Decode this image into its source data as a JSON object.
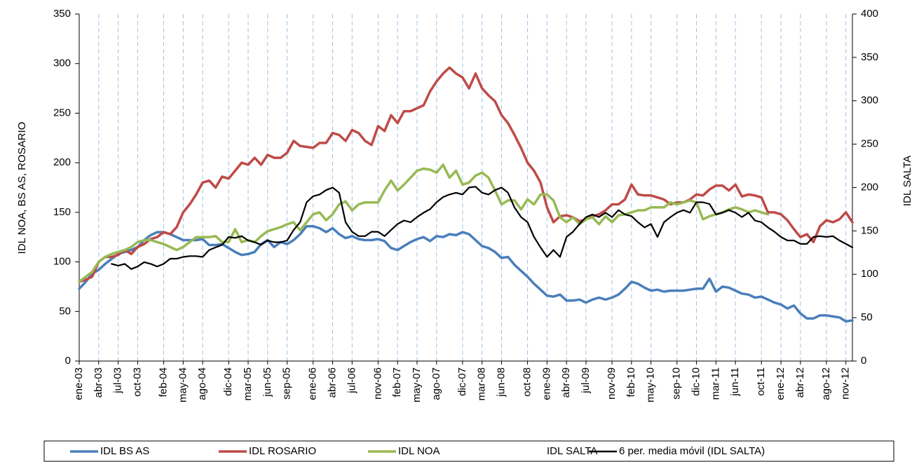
{
  "chart_data": {
    "type": "line",
    "y_label": "IDL NOA, BS AS, ROSARIO",
    "y2_label": "IDL SALTA",
    "categories": [
      "ene-03",
      null,
      null,
      "abr-03",
      null,
      null,
      "jul-03",
      null,
      null,
      "oct-03",
      null,
      null,
      null,
      "feb-04",
      null,
      null,
      "may-04",
      null,
      null,
      "ago-04",
      null,
      null,
      null,
      "dic-04",
      null,
      null,
      "mar-05",
      null,
      null,
      "jun-05",
      null,
      null,
      "sep-05",
      null,
      null,
      null,
      "ene-06",
      null,
      null,
      "abr-06",
      null,
      null,
      "jul-06",
      null,
      null,
      null,
      "nov-06",
      null,
      null,
      "feb-07",
      null,
      null,
      "may-07",
      null,
      null,
      "ago-07",
      null,
      null,
      null,
      "dic-07",
      null,
      null,
      "mar-08",
      null,
      null,
      "jun-08",
      null,
      null,
      null,
      "oct-08",
      null,
      null,
      "ene-09",
      null,
      null,
      "abr-09",
      null,
      null,
      "jul-09",
      null,
      null,
      null,
      "nov-09",
      null,
      null,
      "feb-10",
      null,
      null,
      "may-10",
      null,
      null,
      null,
      "sep-10",
      null,
      null,
      "dic-10",
      null,
      null,
      "mar-11",
      null,
      null,
      "jun-11",
      null,
      null,
      null,
      "oct-11",
      null,
      null,
      "ene-12",
      null,
      null,
      "abr-12",
      null,
      null,
      null,
      "ago-12",
      null,
      null,
      "nov-12",
      null
    ],
    "series": [
      {
        "name": "IDL BS AS",
        "color": "#4a7ebb",
        "axis": "y",
        "values": [
          73,
          80,
          88,
          92,
          98,
          103,
          108,
          110,
          112,
          115,
          122,
          127,
          130,
          130,
          128,
          125,
          122,
          122,
          122,
          123,
          117,
          117,
          118,
          114,
          110,
          107,
          108,
          110,
          118,
          122,
          115,
          120,
          118,
          122,
          128,
          136,
          136,
          134,
          130,
          134,
          128,
          124,
          126,
          123,
          122,
          122,
          123,
          121,
          114,
          112,
          116,
          120,
          123,
          125,
          121,
          126,
          125,
          128,
          127,
          130,
          128,
          122,
          116,
          114,
          110,
          104,
          105,
          97,
          91,
          85,
          78,
          72,
          66,
          65,
          67,
          61,
          61,
          62,
          59,
          62,
          64,
          62,
          64,
          67,
          73,
          80,
          78,
          74,
          71,
          72,
          70,
          71,
          71,
          71,
          72,
          73,
          73,
          83,
          70,
          75,
          74,
          71,
          68,
          67,
          64,
          65,
          62,
          59,
          57,
          53,
          56,
          48,
          43,
          43,
          46,
          46,
          45,
          44,
          40,
          41
        ]
      },
      {
        "name": "IDL ROSARIO",
        "color": "#be4b48",
        "axis": "y",
        "values": [
          80,
          82,
          85,
          100,
          105,
          105,
          107,
          112,
          108,
          115,
          118,
          123,
          125,
          130,
          128,
          135,
          150,
          158,
          168,
          180,
          182,
          175,
          186,
          184,
          192,
          200,
          198,
          205,
          198,
          208,
          205,
          205,
          210,
          222,
          217,
          216,
          215,
          220,
          220,
          230,
          228,
          222,
          233,
          230,
          222,
          218,
          237,
          232,
          248,
          240,
          252,
          252,
          255,
          258,
          272,
          282,
          290,
          296,
          290,
          286,
          275,
          290,
          275,
          268,
          262,
          248,
          240,
          228,
          215,
          200,
          192,
          180,
          155,
          140,
          146,
          147,
          145,
          141,
          143,
          146,
          148,
          152,
          158,
          158,
          163,
          178,
          168,
          167,
          167,
          165,
          163,
          158,
          160,
          160,
          163,
          168,
          167,
          173,
          177,
          177,
          172,
          178,
          166,
          168,
          167,
          165,
          150,
          150,
          148,
          142,
          133,
          125,
          128,
          120,
          136,
          142,
          140,
          143,
          150,
          140
        ]
      },
      {
        "name": "IDL NOA",
        "color": "#98b954",
        "axis": "y",
        "values": [
          80,
          85,
          90,
          100,
          105,
          108,
          110,
          112,
          115,
          120,
          122,
          122,
          120,
          118,
          115,
          112,
          115,
          120,
          125,
          125,
          125,
          126,
          120,
          120,
          133,
          120,
          122,
          120,
          126,
          131,
          133,
          135,
          138,
          140,
          132,
          140,
          148,
          150,
          142,
          148,
          158,
          161,
          152,
          158,
          160,
          160,
          160,
          172,
          182,
          172,
          178,
          185,
          192,
          194,
          193,
          190,
          198,
          185,
          192,
          178,
          180,
          187,
          190,
          185,
          172,
          158,
          162,
          162,
          153,
          163,
          158,
          168,
          168,
          162,
          145,
          140,
          145,
          138,
          143,
          145,
          138,
          146,
          140,
          147,
          148,
          150,
          152,
          152,
          155,
          155,
          155,
          160,
          158,
          160,
          162,
          160,
          143,
          146,
          148,
          150,
          153,
          155,
          153,
          150,
          152,
          150,
          148,
          null,
          null,
          null,
          null,
          null,
          null,
          null,
          null,
          null,
          null,
          null,
          null,
          null
        ]
      },
      {
        "name": "IDL SALTA",
        "color": null,
        "axis": "y2",
        "values": [
          null,
          null,
          null,
          null,
          null,
          null,
          null,
          null,
          null,
          null,
          null,
          null,
          null,
          null,
          null,
          null,
          null,
          null,
          null,
          null,
          null,
          null,
          null,
          null,
          null,
          null,
          null,
          null,
          null,
          null,
          null,
          null,
          null,
          null,
          null,
          null,
          null,
          null,
          null,
          null,
          null,
          null,
          null,
          null,
          null,
          null,
          null,
          null,
          null,
          null,
          null,
          null,
          null,
          null,
          null,
          null,
          null,
          null,
          null,
          null,
          null,
          null,
          null,
          null,
          null,
          null,
          null,
          null,
          null,
          null,
          null,
          null,
          null,
          null,
          null,
          null,
          null,
          null,
          null,
          null,
          null,
          null,
          null,
          null,
          null,
          null,
          null,
          null,
          null,
          null,
          null,
          null,
          null,
          null,
          null,
          null,
          null,
          null,
          null,
          null,
          null,
          null,
          null,
          null,
          null,
          null,
          null,
          null,
          null,
          null,
          null,
          null,
          null,
          null,
          null,
          null,
          null,
          null,
          null,
          null
        ]
      },
      {
        "name": "6 per. media móvil (IDL SALTA)",
        "color": "#000000",
        "axis": "y2",
        "values": [
          null,
          null,
          null,
          null,
          null,
          112,
          110,
          112,
          106,
          109,
          114,
          112,
          109,
          112,
          118,
          118,
          120,
          121,
          121,
          120,
          128,
          131,
          134,
          143,
          142,
          144,
          139,
          137,
          134,
          139,
          137,
          137,
          139,
          151,
          160,
          183,
          190,
          192,
          197,
          200,
          194,
          160,
          149,
          144,
          144,
          149,
          149,
          144,
          151,
          158,
          162,
          160,
          166,
          171,
          175,
          183,
          189,
          192,
          194,
          192,
          200,
          201,
          194,
          192,
          197,
          200,
          194,
          177,
          166,
          160,
          143,
          131,
          120,
          128,
          120,
          143,
          149,
          158,
          166,
          169,
          166,
          171,
          166,
          174,
          169,
          167,
          160,
          154,
          158,
          143,
          160,
          166,
          171,
          174,
          171,
          183,
          183,
          181,
          169,
          171,
          174,
          171,
          166,
          171,
          162,
          160,
          154,
          149,
          143,
          139,
          139,
          135,
          135,
          143,
          144,
          143,
          144,
          139,
          135,
          131
        ]
      }
    ],
    "ylim": [
      0,
      350
    ],
    "yticks": [
      0,
      50,
      100,
      150,
      200,
      250,
      300,
      350
    ],
    "y2lim": [
      0,
      400
    ],
    "y2ticks": [
      0,
      50,
      100,
      150,
      200,
      250,
      300,
      350,
      400
    ],
    "grid": true,
    "legend": "bottom"
  }
}
